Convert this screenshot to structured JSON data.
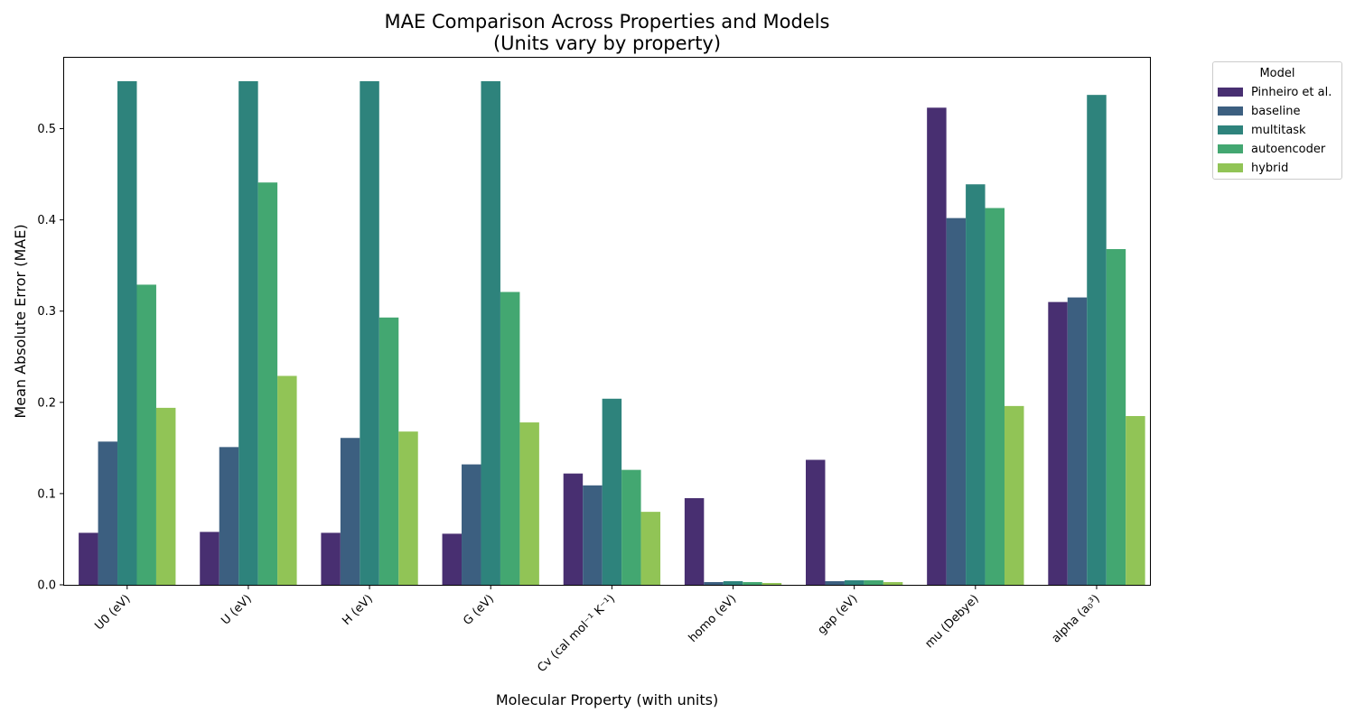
{
  "chart_data": {
    "type": "bar",
    "title": "MAE Comparison Across Properties and Models",
    "subtitle": "(Units vary by property)",
    "xlabel": "Molecular Property (with units)",
    "ylabel": "Mean Absolute Error (MAE)",
    "ylim": [
      0,
      0.58
    ],
    "yticks": [
      "0.0",
      "0.1",
      "0.2",
      "0.3",
      "0.4",
      "0.5"
    ],
    "categories": [
      "U0 (eV)",
      "U (eV)",
      "H (eV)",
      "G (eV)",
      "Cv (cal mol⁻¹ K⁻¹)",
      "homo (eV)",
      "gap (eV)",
      "mu (Debye)",
      "alpha (a₀³)"
    ],
    "legend_title": "Model",
    "legend_position": "outside-top-right",
    "grid": false,
    "series": [
      {
        "name": "Pinheiro et al.",
        "color": "#482f71",
        "values": [
          0.057,
          0.058,
          0.057,
          0.056,
          0.122,
          0.095,
          0.137,
          0.523,
          0.31
        ]
      },
      {
        "name": "baseline",
        "color": "#3c5f80",
        "values": [
          0.157,
          0.151,
          0.161,
          0.132,
          0.109,
          0.003,
          0.004,
          0.402,
          0.315
        ]
      },
      {
        "name": "multitask",
        "color": "#2e837c",
        "values": [
          0.552,
          0.552,
          0.552,
          0.552,
          0.204,
          0.004,
          0.005,
          0.439,
          0.537
        ]
      },
      {
        "name": "autoencoder",
        "color": "#43a771",
        "values": [
          0.329,
          0.441,
          0.293,
          0.321,
          0.126,
          0.003,
          0.005,
          0.413,
          0.368
        ]
      },
      {
        "name": "hybrid",
        "color": "#91c456",
        "values": [
          0.194,
          0.229,
          0.168,
          0.178,
          0.08,
          0.002,
          0.003,
          0.196,
          0.185
        ]
      }
    ]
  }
}
